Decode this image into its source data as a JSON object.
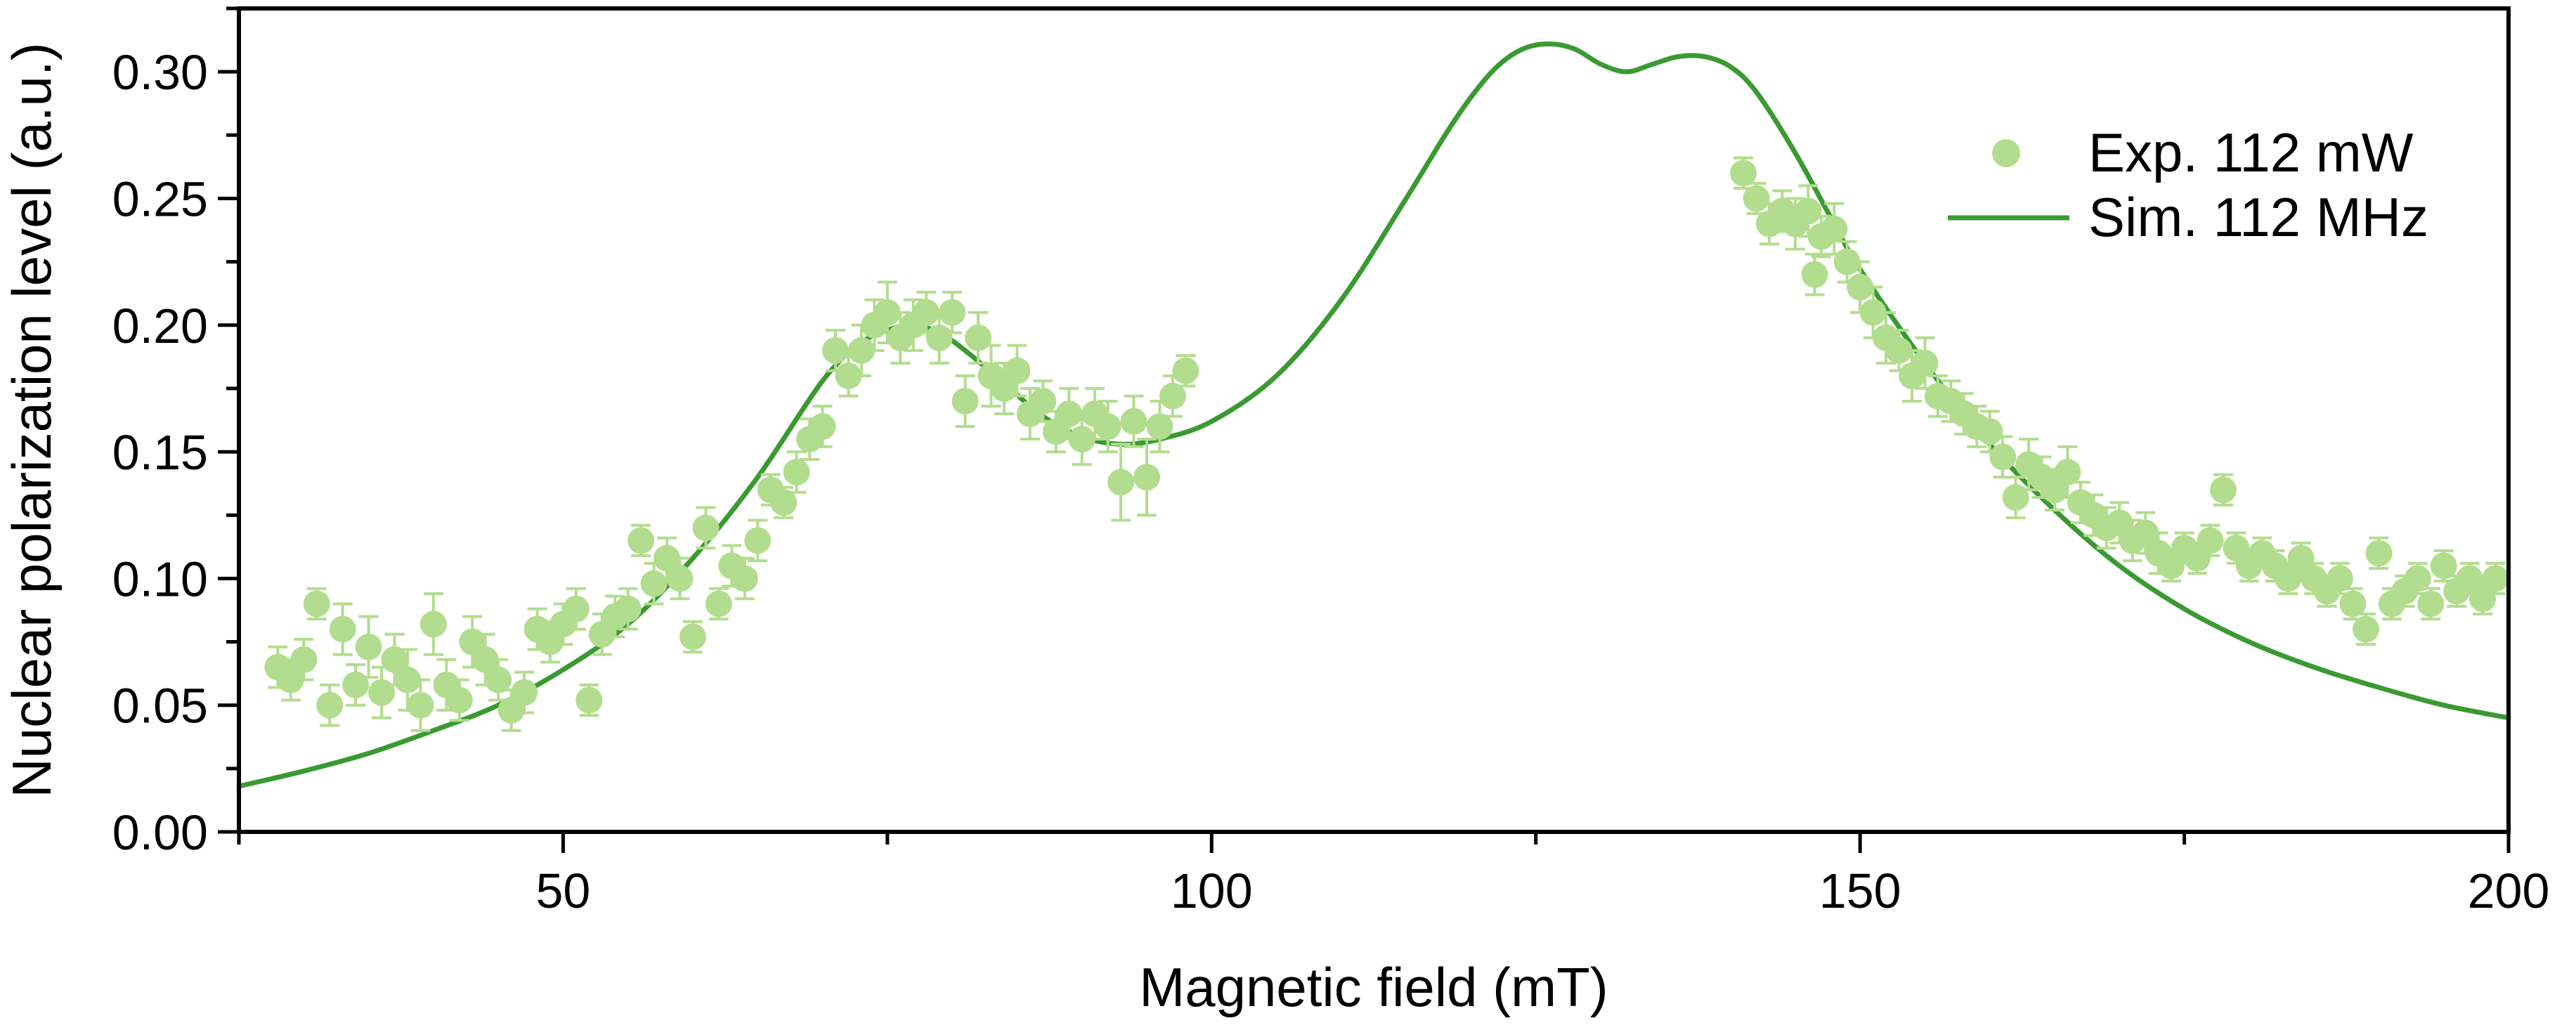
{
  "chart_data": {
    "type": "scatter",
    "title": "",
    "xlabel": "Magnetic field (mT)",
    "ylabel": "Nuclear polarization level (a.u.)",
    "xlim": [
      25,
      200
    ],
    "ylim": [
      0,
      0.325
    ],
    "x_ticks": [
      50,
      100,
      150,
      200
    ],
    "x_tick_labels": [
      "50",
      "100",
      "150",
      "200"
    ],
    "y_ticks": [
      0,
      0.05,
      0.1,
      0.15,
      0.2,
      0.25,
      0.3
    ],
    "y_tick_labels": [
      "0.00",
      "0.05",
      "0.10",
      "0.15",
      "0.20",
      "0.25",
      "0.30"
    ],
    "legend_position": "top-right",
    "colors": {
      "exp": "#b3dd8e",
      "sim": "#3a9a32"
    },
    "series": [
      {
        "name": "Exp. 112 mW",
        "kind": "scatter_errorbar",
        "points": [
          [
            28,
            0.065,
            0.008
          ],
          [
            29,
            0.06,
            0.008
          ],
          [
            30,
            0.068,
            0.008
          ],
          [
            31,
            0.09,
            0.006
          ],
          [
            32,
            0.05,
            0.008
          ],
          [
            33,
            0.08,
            0.01
          ],
          [
            34,
            0.058,
            0.008
          ],
          [
            35,
            0.073,
            0.012
          ],
          [
            36,
            0.055,
            0.01
          ],
          [
            37,
            0.068,
            0.01
          ],
          [
            38,
            0.06,
            0.012
          ],
          [
            39,
            0.05,
            0.01
          ],
          [
            40,
            0.082,
            0.012
          ],
          [
            41,
            0.058,
            0.01
          ],
          [
            42,
            0.052,
            0.008
          ],
          [
            43,
            0.075,
            0.01
          ],
          [
            44,
            0.068,
            0.01
          ],
          [
            45,
            0.06,
            0.008
          ],
          [
            46,
            0.048,
            0.008
          ],
          [
            47,
            0.055,
            0.008
          ],
          [
            48,
            0.08,
            0.008
          ],
          [
            49,
            0.075,
            0.008
          ],
          [
            50,
            0.082,
            0.008
          ],
          [
            51,
            0.088,
            0.008
          ],
          [
            52,
            0.052,
            0.006
          ],
          [
            53,
            0.078,
            0.008
          ],
          [
            54,
            0.085,
            0.008
          ],
          [
            55,
            0.088,
            0.008
          ],
          [
            56,
            0.115,
            0.006
          ],
          [
            57,
            0.098,
            0.008
          ],
          [
            58,
            0.108,
            0.008
          ],
          [
            59,
            0.1,
            0.008
          ],
          [
            60,
            0.077,
            0.006
          ],
          [
            61,
            0.12,
            0.008
          ],
          [
            62,
            0.09,
            0.006
          ],
          [
            63,
            0.105,
            0.008
          ],
          [
            64,
            0.1,
            0.008
          ],
          [
            65,
            0.115,
            0.008
          ],
          [
            66,
            0.135,
            0.006
          ],
          [
            67,
            0.13,
            0.006
          ],
          [
            68,
            0.142,
            0.008
          ],
          [
            69,
            0.155,
            0.008
          ],
          [
            70,
            0.16,
            0.008
          ],
          [
            71,
            0.19,
            0.008
          ],
          [
            72,
            0.18,
            0.008
          ],
          [
            73,
            0.19,
            0.01
          ],
          [
            74,
            0.2,
            0.01
          ],
          [
            75,
            0.205,
            0.012
          ],
          [
            76,
            0.195,
            0.01
          ],
          [
            77,
            0.2,
            0.01
          ],
          [
            78,
            0.205,
            0.008
          ],
          [
            79,
            0.195,
            0.01
          ],
          [
            80,
            0.205,
            0.008
          ],
          [
            81,
            0.17,
            0.01
          ],
          [
            82,
            0.195,
            0.01
          ],
          [
            83,
            0.18,
            0.012
          ],
          [
            84,
            0.175,
            0.01
          ],
          [
            85,
            0.182,
            0.01
          ],
          [
            86,
            0.165,
            0.01
          ],
          [
            87,
            0.17,
            0.008
          ],
          [
            88,
            0.158,
            0.008
          ],
          [
            89,
            0.165,
            0.01
          ],
          [
            90,
            0.155,
            0.01
          ],
          [
            91,
            0.165,
            0.01
          ],
          [
            92,
            0.16,
            0.01
          ],
          [
            93,
            0.138,
            0.015
          ],
          [
            94,
            0.162,
            0.01
          ],
          [
            95,
            0.14,
            0.015
          ],
          [
            96,
            0.16,
            0.01
          ],
          [
            97,
            0.172,
            0.008
          ],
          [
            98,
            0.182,
            0.006
          ],
          [
            141,
            0.26,
            0.006
          ],
          [
            142,
            0.25,
            0.006
          ],
          [
            143,
            0.24,
            0.008
          ],
          [
            144,
            0.245,
            0.008
          ],
          [
            145,
            0.24,
            0.01
          ],
          [
            146,
            0.245,
            0.01
          ],
          [
            146.5,
            0.22,
            0.008
          ],
          [
            147,
            0.235,
            0.008
          ],
          [
            148,
            0.238,
            0.01
          ],
          [
            149,
            0.225,
            0.008
          ],
          [
            150,
            0.215,
            0.01
          ],
          [
            151,
            0.205,
            0.01
          ],
          [
            152,
            0.195,
            0.01
          ],
          [
            153,
            0.19,
            0.008
          ],
          [
            154,
            0.18,
            0.01
          ],
          [
            155,
            0.185,
            0.01
          ],
          [
            156,
            0.172,
            0.008
          ],
          [
            157,
            0.17,
            0.008
          ],
          [
            158,
            0.165,
            0.008
          ],
          [
            159,
            0.16,
            0.008
          ],
          [
            160,
            0.158,
            0.008
          ],
          [
            161,
            0.148,
            0.008
          ],
          [
            162,
            0.132,
            0.008
          ],
          [
            163,
            0.145,
            0.01
          ],
          [
            164,
            0.14,
            0.008
          ],
          [
            165,
            0.135,
            0.008
          ],
          [
            166,
            0.142,
            0.01
          ],
          [
            167,
            0.13,
            0.008
          ],
          [
            168,
            0.125,
            0.008
          ],
          [
            169,
            0.12,
            0.008
          ],
          [
            170,
            0.122,
            0.008
          ],
          [
            171,
            0.115,
            0.008
          ],
          [
            172,
            0.118,
            0.008
          ],
          [
            173,
            0.11,
            0.008
          ],
          [
            174,
            0.105,
            0.006
          ],
          [
            175,
            0.112,
            0.006
          ],
          [
            176,
            0.108,
            0.006
          ],
          [
            177,
            0.115,
            0.006
          ],
          [
            178,
            0.135,
            0.006
          ],
          [
            179,
            0.112,
            0.006
          ],
          [
            180,
            0.105,
            0.006
          ],
          [
            181,
            0.11,
            0.006
          ],
          [
            182,
            0.105,
            0.006
          ],
          [
            183,
            0.1,
            0.006
          ],
          [
            184,
            0.108,
            0.006
          ],
          [
            185,
            0.1,
            0.006
          ],
          [
            186,
            0.095,
            0.006
          ],
          [
            187,
            0.1,
            0.006
          ],
          [
            188,
            0.09,
            0.006
          ],
          [
            189,
            0.08,
            0.006
          ],
          [
            190,
            0.11,
            0.006
          ],
          [
            191,
            0.09,
            0.006
          ],
          [
            192,
            0.095,
            0.006
          ],
          [
            193,
            0.1,
            0.006
          ],
          [
            194,
            0.09,
            0.006
          ],
          [
            195,
            0.105,
            0.006
          ],
          [
            196,
            0.095,
            0.006
          ],
          [
            197,
            0.1,
            0.006
          ],
          [
            198,
            0.092,
            0.006
          ],
          [
            199,
            0.1,
            0.006
          ]
        ]
      },
      {
        "name": "Sim. 112 MHz",
        "kind": "line",
        "x": [
          25,
          30,
          35,
          40,
          45,
          50,
          55,
          60,
          65,
          70,
          73,
          75,
          77,
          79,
          81,
          84,
          87,
          90,
          93,
          96,
          100,
          105,
          110,
          115,
          118,
          120,
          122,
          124,
          126,
          128,
          130,
          132,
          134,
          136,
          138,
          140,
          142,
          145,
          148,
          150,
          155,
          160,
          165,
          170,
          175,
          180,
          185,
          190,
          195,
          200
        ],
        "y": [
          0.018,
          0.024,
          0.031,
          0.04,
          0.05,
          0.064,
          0.082,
          0.108,
          0.14,
          0.178,
          0.193,
          0.198,
          0.2,
          0.197,
          0.19,
          0.177,
          0.164,
          0.156,
          0.153,
          0.155,
          0.162,
          0.18,
          0.21,
          0.25,
          0.275,
          0.29,
          0.302,
          0.309,
          0.311,
          0.309,
          0.303,
          0.3,
          0.303,
          0.306,
          0.306,
          0.302,
          0.292,
          0.268,
          0.24,
          0.222,
          0.185,
          0.153,
          0.127,
          0.105,
          0.088,
          0.075,
          0.065,
          0.057,
          0.05,
          0.045
        ]
      }
    ]
  }
}
